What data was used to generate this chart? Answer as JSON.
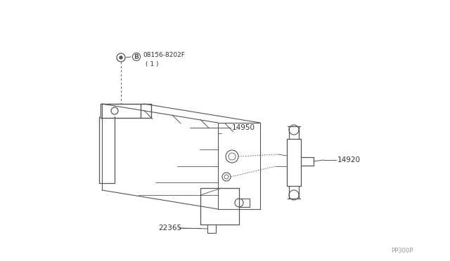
{
  "bg_color": "#ffffff",
  "line_color": "#555555",
  "label_color": "#333333",
  "part_number_08156": "08156-8202F",
  "part_circle_B": "B",
  "part_note_1": "( 1 )",
  "part_14950": "14950",
  "part_14920": "14920",
  "part_22365": "22365",
  "diagram_code": "PP300P",
  "fig_width": 6.4,
  "fig_height": 3.72,
  "dpi": 100
}
